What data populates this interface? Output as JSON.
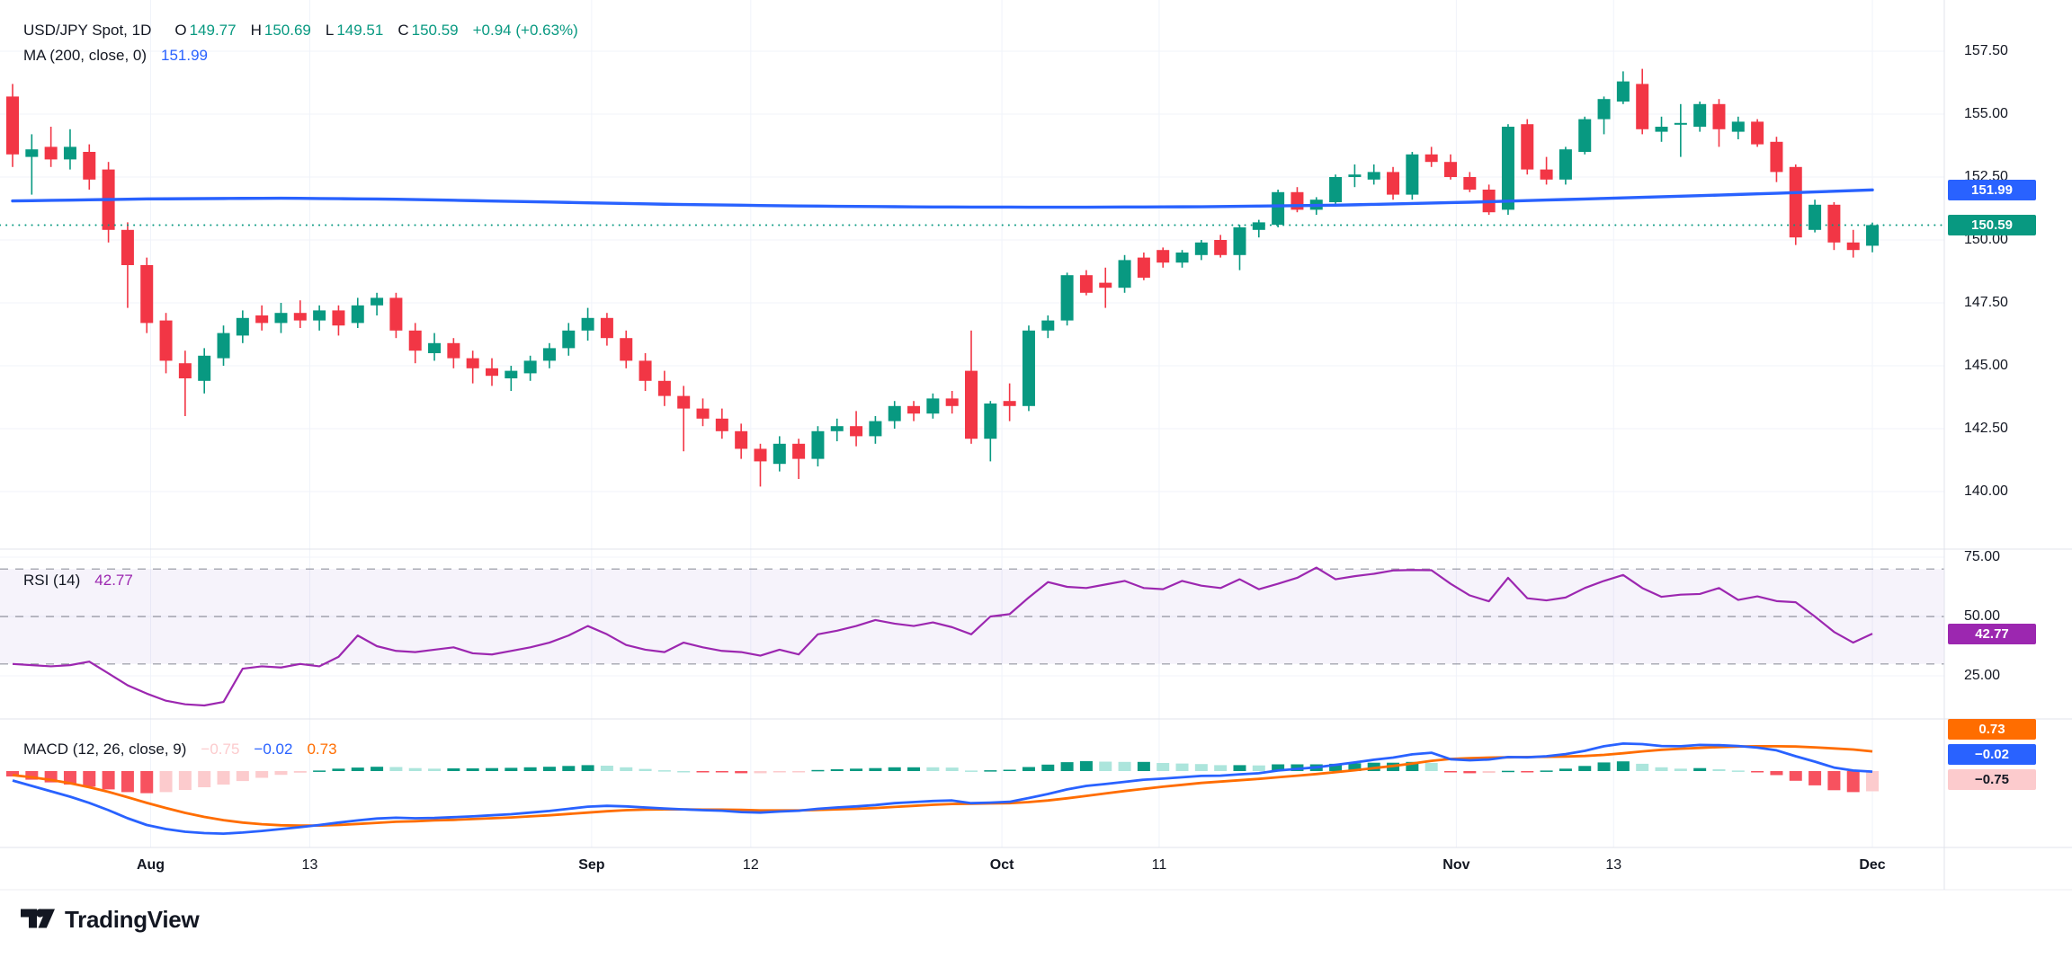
{
  "legend": {
    "symbol": {
      "title": "USD/JPY Spot, 1D",
      "o_label": "O",
      "o": "149.77",
      "h_label": "H",
      "h": "150.69",
      "l_label": "L",
      "l": "149.51",
      "c_label": "C",
      "c": "150.59",
      "change": "+0.94 (+0.63%)"
    },
    "ma": {
      "label": "MA (200, close, 0)",
      "value": "151.99"
    },
    "rsi": {
      "label": "RSI (14)",
      "value": "42.77"
    },
    "macd": {
      "label": "MACD (12, 26, close, 9)",
      "hist": "−0.75",
      "macd": "−0.02",
      "signal": "0.73"
    }
  },
  "axis_badges": {
    "ma": "151.99",
    "close": "150.59",
    "rsi": "42.77",
    "macd_signal": "0.73",
    "macd_line": "−0.02",
    "macd_hist": "−0.75"
  },
  "footer": {
    "brand": "TradingView"
  },
  "chart_data": {
    "type": "candlestick",
    "title": "USD/JPY Spot, 1D",
    "symbol": "USD/JPY Spot",
    "interval": "1D",
    "last_bar": {
      "open": 149.77,
      "high": 150.69,
      "low": 149.51,
      "close": 150.59,
      "change": "+0.94 (+0.63%)"
    },
    "price_line": 150.59,
    "price_axis_ticks": [
      157.5,
      155.0,
      152.5,
      150.0,
      147.5,
      145.0,
      142.5,
      140.0
    ],
    "main_ylim": [
      137.8,
      159.5
    ],
    "grid": true,
    "time_axis_labels": [
      {
        "label": "Aug",
        "i": 7.2,
        "major": true
      },
      {
        "label": "13",
        "i": 15.5,
        "major": false
      },
      {
        "label": "Sep",
        "i": 30.2,
        "major": true
      },
      {
        "label": "12",
        "i": 38.5,
        "major": false
      },
      {
        "label": "Oct",
        "i": 51.6,
        "major": true
      },
      {
        "label": "11",
        "i": 59.8,
        "major": false
      },
      {
        "label": "Nov",
        "i": 75.3,
        "major": true
      },
      {
        "label": "13",
        "i": 83.5,
        "major": false
      },
      {
        "label": "Dec",
        "i": 97,
        "major": true
      }
    ],
    "candles": [
      [
        155.7,
        156.2,
        152.9,
        153.4
      ],
      [
        153.3,
        154.2,
        151.8,
        153.6
      ],
      [
        153.7,
        154.5,
        152.9,
        153.2
      ],
      [
        153.2,
        154.4,
        152.8,
        153.7
      ],
      [
        153.5,
        153.8,
        152.0,
        152.4
      ],
      [
        152.8,
        153.1,
        149.9,
        150.4
      ],
      [
        150.4,
        150.7,
        147.3,
        149.0
      ],
      [
        149.0,
        149.3,
        146.3,
        146.7
      ],
      [
        146.8,
        147.1,
        144.7,
        145.2
      ],
      [
        145.1,
        145.6,
        143.0,
        144.5
      ],
      [
        144.4,
        145.7,
        143.9,
        145.4
      ],
      [
        145.3,
        146.6,
        145.0,
        146.3
      ],
      [
        146.2,
        147.2,
        145.9,
        146.9
      ],
      [
        147.0,
        147.4,
        146.4,
        146.7
      ],
      [
        146.7,
        147.5,
        146.3,
        147.1
      ],
      [
        147.1,
        147.6,
        146.5,
        146.8
      ],
      [
        146.8,
        147.4,
        146.4,
        147.2
      ],
      [
        147.2,
        147.4,
        146.2,
        146.6
      ],
      [
        146.7,
        147.7,
        146.5,
        147.4
      ],
      [
        147.4,
        147.9,
        147.0,
        147.7
      ],
      [
        147.7,
        147.9,
        146.1,
        146.4
      ],
      [
        146.4,
        146.7,
        145.1,
        145.6
      ],
      [
        145.5,
        146.3,
        145.2,
        145.9
      ],
      [
        145.9,
        146.1,
        144.9,
        145.3
      ],
      [
        145.3,
        145.6,
        144.3,
        144.9
      ],
      [
        144.9,
        145.3,
        144.2,
        144.6
      ],
      [
        144.5,
        145.0,
        144.0,
        144.8
      ],
      [
        144.7,
        145.4,
        144.4,
        145.2
      ],
      [
        145.2,
        145.9,
        144.9,
        145.7
      ],
      [
        145.7,
        146.7,
        145.4,
        146.4
      ],
      [
        146.4,
        147.3,
        146.0,
        146.9
      ],
      [
        146.9,
        147.1,
        145.8,
        146.1
      ],
      [
        146.1,
        146.4,
        144.9,
        145.2
      ],
      [
        145.2,
        145.5,
        144.0,
        144.4
      ],
      [
        144.4,
        144.8,
        143.4,
        143.8
      ],
      [
        143.8,
        144.2,
        141.6,
        143.3
      ],
      [
        143.3,
        143.7,
        142.6,
        142.9
      ],
      [
        142.9,
        143.3,
        142.1,
        142.4
      ],
      [
        142.4,
        142.7,
        141.3,
        141.7
      ],
      [
        141.7,
        141.9,
        140.2,
        141.2
      ],
      [
        141.1,
        142.2,
        140.8,
        141.9
      ],
      [
        141.9,
        142.1,
        140.5,
        141.3
      ],
      [
        141.3,
        142.6,
        141.0,
        142.4
      ],
      [
        142.4,
        142.9,
        142.0,
        142.6
      ],
      [
        142.6,
        143.2,
        141.8,
        142.2
      ],
      [
        142.2,
        143.0,
        141.9,
        142.8
      ],
      [
        142.8,
        143.6,
        142.5,
        143.4
      ],
      [
        143.4,
        143.6,
        142.8,
        143.1
      ],
      [
        143.1,
        143.9,
        142.9,
        143.7
      ],
      [
        143.7,
        144.0,
        143.1,
        143.4
      ],
      [
        144.8,
        146.4,
        141.9,
        142.1
      ],
      [
        142.1,
        143.6,
        141.2,
        143.5
      ],
      [
        143.6,
        144.3,
        142.8,
        143.4
      ],
      [
        143.4,
        146.6,
        143.2,
        146.4
      ],
      [
        146.4,
        147.0,
        146.1,
        146.8
      ],
      [
        146.8,
        148.7,
        146.6,
        148.6
      ],
      [
        148.6,
        148.8,
        147.8,
        147.9
      ],
      [
        148.3,
        148.9,
        147.3,
        148.1
      ],
      [
        148.1,
        149.4,
        147.9,
        149.2
      ],
      [
        149.3,
        149.5,
        148.4,
        148.5
      ],
      [
        149.6,
        149.7,
        148.9,
        149.1
      ],
      [
        149.1,
        149.6,
        148.9,
        149.5
      ],
      [
        149.4,
        150.0,
        149.2,
        149.9
      ],
      [
        150.0,
        150.2,
        149.3,
        149.4
      ],
      [
        149.4,
        150.6,
        148.8,
        150.5
      ],
      [
        150.4,
        150.8,
        150.1,
        150.7
      ],
      [
        150.6,
        152.0,
        150.5,
        151.9
      ],
      [
        151.9,
        152.1,
        151.1,
        151.2
      ],
      [
        151.2,
        151.7,
        151.0,
        151.6
      ],
      [
        151.5,
        152.6,
        151.4,
        152.5
      ],
      [
        152.5,
        153.0,
        152.1,
        152.6
      ],
      [
        152.4,
        153.0,
        152.2,
        152.7
      ],
      [
        152.7,
        152.9,
        151.6,
        151.8
      ],
      [
        151.8,
        153.5,
        151.6,
        153.4
      ],
      [
        153.4,
        153.7,
        152.9,
        153.1
      ],
      [
        153.1,
        153.4,
        152.4,
        152.5
      ],
      [
        152.5,
        152.7,
        151.9,
        152.0
      ],
      [
        152.0,
        152.2,
        151.0,
        151.1
      ],
      [
        151.2,
        154.6,
        151.0,
        154.5
      ],
      [
        154.6,
        154.8,
        152.6,
        152.8
      ],
      [
        152.8,
        153.3,
        152.2,
        152.4
      ],
      [
        152.4,
        153.7,
        152.2,
        153.6
      ],
      [
        153.5,
        154.9,
        153.4,
        154.8
      ],
      [
        154.8,
        155.7,
        154.2,
        155.6
      ],
      [
        155.5,
        156.7,
        155.4,
        156.3
      ],
      [
        156.2,
        156.8,
        154.2,
        154.4
      ],
      [
        154.3,
        154.9,
        153.9,
        154.5
      ],
      [
        154.6,
        155.4,
        153.3,
        154.65
      ],
      [
        154.5,
        155.5,
        154.3,
        155.4
      ],
      [
        155.4,
        155.6,
        153.7,
        154.4
      ],
      [
        154.3,
        154.9,
        154.0,
        154.7
      ],
      [
        154.7,
        154.8,
        153.7,
        153.8
      ],
      [
        153.9,
        154.1,
        152.3,
        152.7
      ],
      [
        152.9,
        153.0,
        149.8,
        150.1
      ],
      [
        150.4,
        151.6,
        150.3,
        151.4
      ],
      [
        151.4,
        151.5,
        149.6,
        149.9
      ],
      [
        149.9,
        150.4,
        149.3,
        149.6
      ],
      [
        149.77,
        150.69,
        149.51,
        150.59
      ]
    ],
    "ma200": {
      "period": 200,
      "source": "close",
      "offset": 0,
      "last": 151.99,
      "anchors": [
        [
          0,
          151.55
        ],
        [
          7,
          151.63
        ],
        [
          14,
          151.66
        ],
        [
          20,
          151.62
        ],
        [
          27,
          151.52
        ],
        [
          34,
          151.42
        ],
        [
          41,
          151.35
        ],
        [
          48,
          151.31
        ],
        [
          55,
          151.3
        ],
        [
          62,
          151.32
        ],
        [
          69,
          151.38
        ],
        [
          76,
          151.5
        ],
        [
          83,
          151.65
        ],
        [
          88,
          151.76
        ],
        [
          93,
          151.88
        ],
        [
          97,
          151.99
        ]
      ]
    },
    "rsi": {
      "period": 14,
      "last": 42.77,
      "ticks": [
        75,
        50,
        25
      ],
      "levels": [
        70,
        50,
        30
      ],
      "band": [
        30,
        70
      ],
      "values": [
        30,
        29.5,
        29,
        29.5,
        31,
        26,
        21,
        17.5,
        14.5,
        13,
        12.5,
        14,
        28,
        29,
        28.5,
        30,
        29,
        33,
        42,
        37.5,
        35.5,
        35,
        36,
        37,
        34.5,
        34,
        35.5,
        37,
        39,
        42,
        46,
        42.5,
        38,
        36,
        35,
        39,
        37,
        35.5,
        35,
        33.5,
        36,
        34,
        42.5,
        44,
        46,
        48.5,
        47,
        46,
        47.5,
        45.5,
        42.5,
        50,
        51,
        58,
        64.5,
        62.5,
        62,
        63.5,
        65,
        62,
        61.5,
        65,
        63,
        62,
        65.7,
        61.5,
        63.8,
        66.3,
        70.6,
        65.7,
        67,
        68,
        69.4,
        69.6,
        69.5,
        63.8,
        58.9,
        56.4,
        66.3,
        57.7,
        56.8,
        58,
        62,
        65,
        67.5,
        62,
        58.3,
        59.2,
        59.5,
        62,
        57,
        58.5,
        56.5,
        56,
        50,
        43.5,
        39,
        42.77
      ]
    },
    "macd": {
      "params": "12, 26, close, 9",
      "last_macd": -0.02,
      "last_signal": 0.73,
      "last_hist": -0.75,
      "macd": [
        -0.35,
        -0.55,
        -0.75,
        -0.95,
        -1.18,
        -1.45,
        -1.75,
        -2.0,
        -2.15,
        -2.25,
        -2.3,
        -2.32,
        -2.28,
        -2.22,
        -2.15,
        -2.08,
        -2.0,
        -1.91,
        -1.83,
        -1.76,
        -1.73,
        -1.75,
        -1.74,
        -1.71,
        -1.68,
        -1.64,
        -1.6,
        -1.54,
        -1.48,
        -1.4,
        -1.32,
        -1.29,
        -1.31,
        -1.35,
        -1.39,
        -1.42,
        -1.45,
        -1.47,
        -1.52,
        -1.54,
        -1.5,
        -1.47,
        -1.4,
        -1.35,
        -1.31,
        -1.26,
        -1.19,
        -1.15,
        -1.11,
        -1.09,
        -1.19,
        -1.17,
        -1.14,
        -1.0,
        -0.85,
        -0.68,
        -0.55,
        -0.48,
        -0.4,
        -0.32,
        -0.28,
        -0.23,
        -0.18,
        -0.17,
        -0.12,
        -0.08,
        0.02,
        0.08,
        0.14,
        0.23,
        0.32,
        0.42,
        0.5,
        0.62,
        0.68,
        0.44,
        0.4,
        0.43,
        0.52,
        0.51,
        0.55,
        0.63,
        0.75,
        0.92,
        1.02,
        1.0,
        0.93,
        0.92,
        0.97,
        0.96,
        0.93,
        0.87,
        0.77,
        0.55,
        0.35,
        0.13,
        0.02,
        -0.02
      ],
      "signal": [
        -0.15,
        -0.23,
        -0.33,
        -0.45,
        -0.6,
        -0.77,
        -0.97,
        -1.18,
        -1.37,
        -1.55,
        -1.7,
        -1.82,
        -1.91,
        -1.97,
        -2.01,
        -2.02,
        -2.02,
        -2.0,
        -1.96,
        -1.92,
        -1.88,
        -1.86,
        -1.83,
        -1.81,
        -1.78,
        -1.75,
        -1.72,
        -1.68,
        -1.64,
        -1.59,
        -1.54,
        -1.49,
        -1.45,
        -1.43,
        -1.42,
        -1.42,
        -1.43,
        -1.43,
        -1.44,
        -1.46,
        -1.46,
        -1.46,
        -1.44,
        -1.42,
        -1.4,
        -1.37,
        -1.33,
        -1.29,
        -1.25,
        -1.22,
        -1.21,
        -1.2,
        -1.19,
        -1.15,
        -1.09,
        -1.01,
        -0.92,
        -0.83,
        -0.74,
        -0.66,
        -0.58,
        -0.51,
        -0.44,
        -0.39,
        -0.34,
        -0.29,
        -0.23,
        -0.17,
        -0.11,
        -0.04,
        0.03,
        0.11,
        0.19,
        0.28,
        0.38,
        0.45,
        0.48,
        0.5,
        0.51,
        0.52,
        0.53,
        0.54,
        0.56,
        0.6,
        0.66,
        0.73,
        0.79,
        0.83,
        0.86,
        0.89,
        0.91,
        0.92,
        0.92,
        0.91,
        0.88,
        0.84,
        0.8,
        0.73
      ]
    },
    "colors": {
      "up": "#089981",
      "down": "#f23645",
      "ma": "#2962ff",
      "rsi": "#9c27b0",
      "rsi_band": "rgba(126,87,194,0.07)",
      "rsi_dash": "#787b86",
      "macd_line": "#2962ff",
      "signal_line": "#ff6d00",
      "hist_up": "#089981",
      "hist_up_fade": "#ace5dc",
      "hist_down": "#f7525f",
      "hist_down_fade": "#fccbcd",
      "grid": "#f0f3fa",
      "separator": "#e0e3eb",
      "axis_text": "#131722"
    },
    "legend_position": "top-left"
  }
}
